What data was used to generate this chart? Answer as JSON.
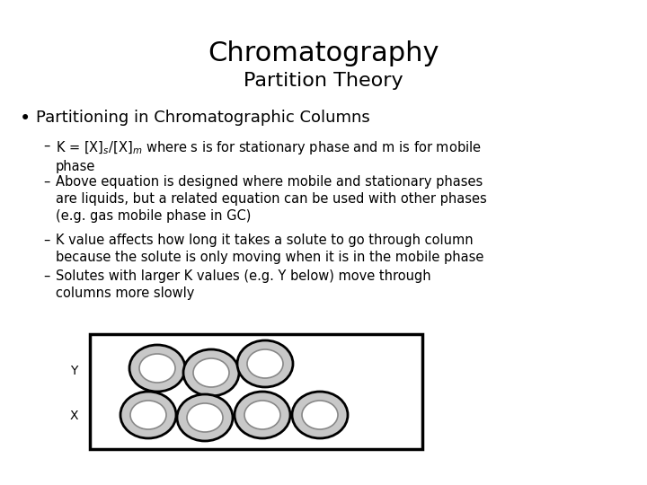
{
  "title_line1": "Chromatography",
  "title_line2": "Partition Theory",
  "bullet": "Partitioning in Chromatographic Columns",
  "label_y": "Y",
  "label_x": "X",
  "bg_color": "#ffffff",
  "text_color": "#000000",
  "title1_fontsize": 22,
  "title2_fontsize": 16,
  "bullet_fontsize": 13,
  "sub_bullet_fontsize": 10.5,
  "label_fontsize": 10,
  "box_color": "#000000",
  "circle_fill": "#c8c8c8",
  "circle_edge": "#000000",
  "inner_fill": "#ffffff",
  "inner_edge": "#888888"
}
